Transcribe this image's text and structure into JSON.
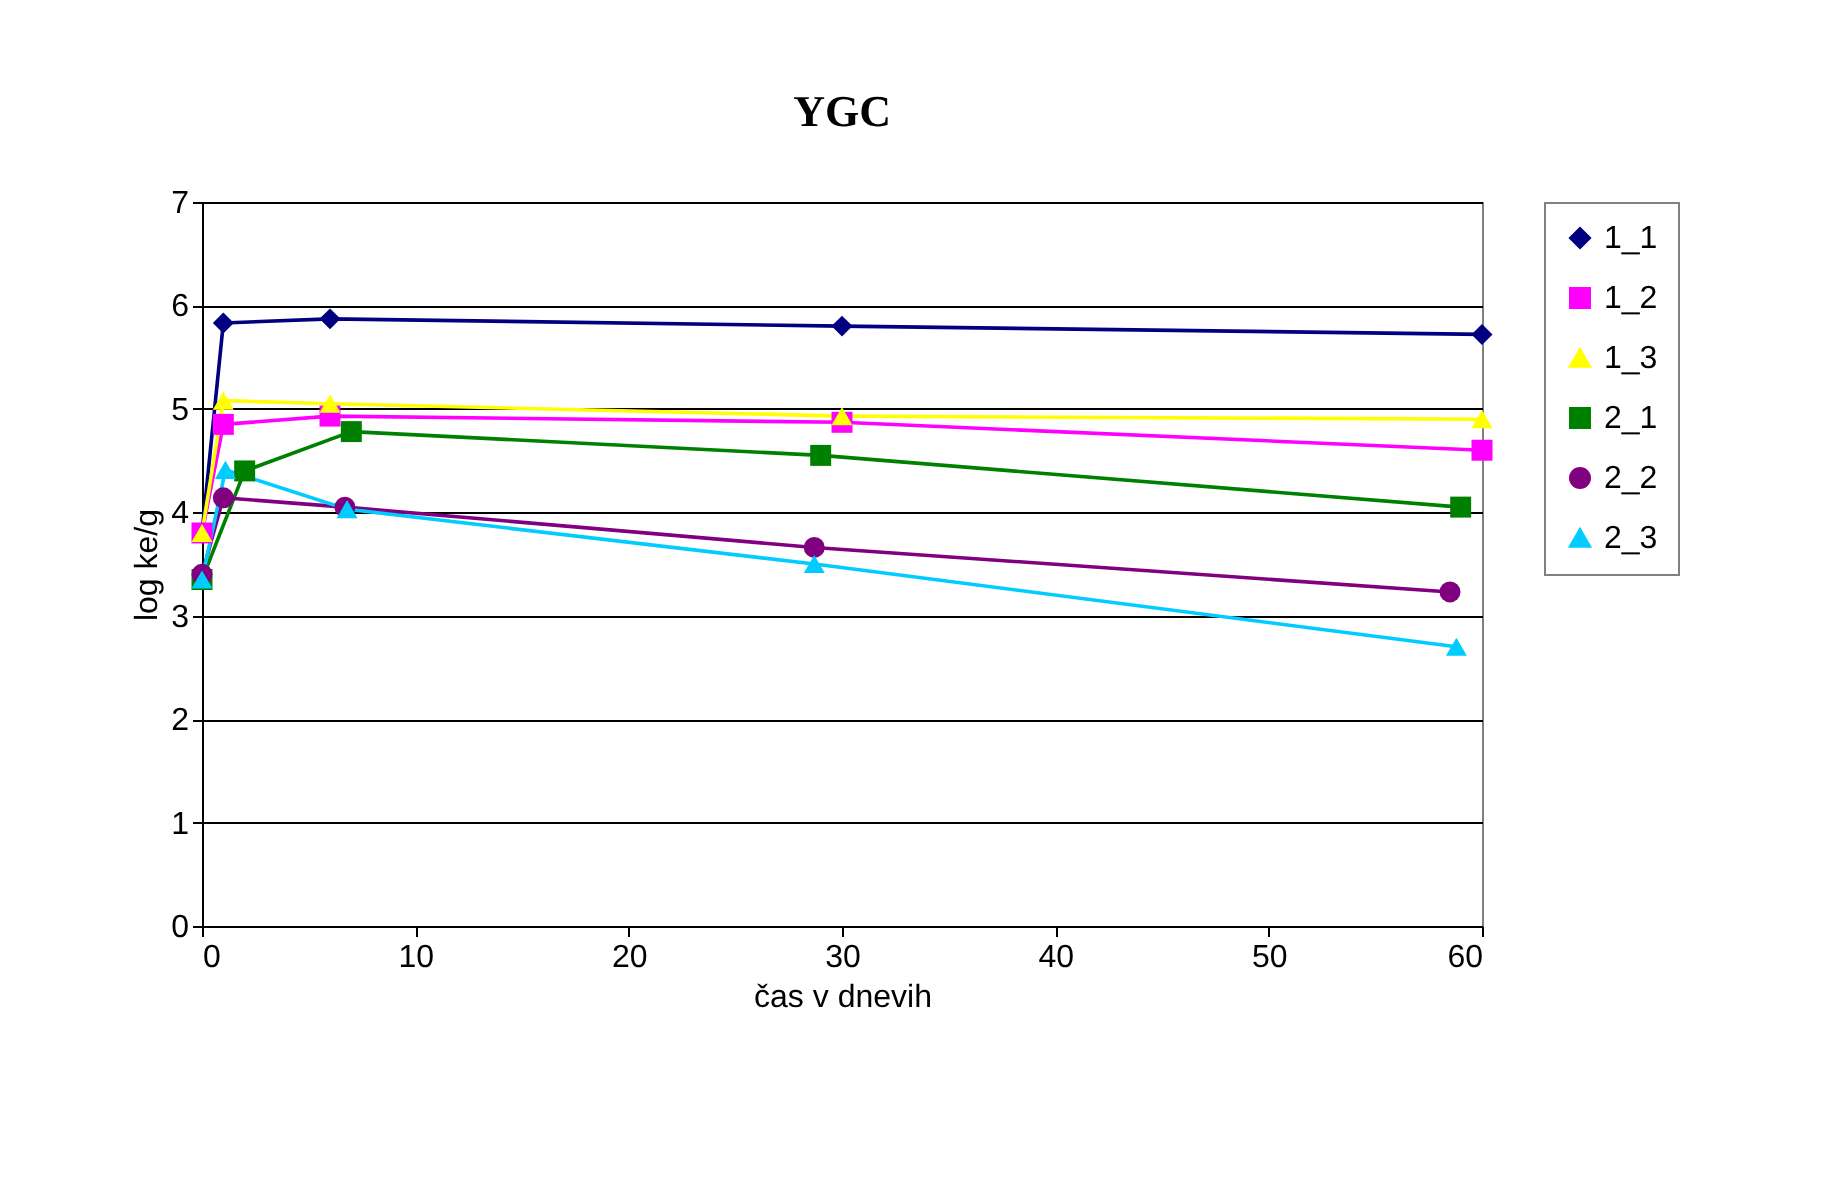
{
  "chart_data": {
    "type": "line",
    "title": "YGC",
    "xlabel": "čas v dnevih",
    "ylabel": "log ke/g",
    "xlim": [
      0,
      60
    ],
    "xticks": [
      0,
      10,
      20,
      30,
      40,
      50,
      60
    ],
    "ylim": [
      0,
      7
    ],
    "yticks": [
      0,
      1,
      2,
      3,
      4,
      5,
      6,
      7
    ],
    "grid": "y",
    "legend": "right",
    "line_style": "solid",
    "series": [
      {
        "name": "1_1",
        "color": "#000080",
        "marker": "diamond",
        "x": [
          0,
          1,
          6,
          30,
          60
        ],
        "values": [
          3.8,
          5.83,
          5.87,
          5.8,
          5.72
        ]
      },
      {
        "name": "1_2",
        "color": "#ff00ff",
        "marker": "square",
        "x": [
          0,
          1,
          6,
          30,
          60
        ],
        "values": [
          3.8,
          4.85,
          4.93,
          4.87,
          4.6
        ]
      },
      {
        "name": "1_3",
        "color": "#ffff00",
        "marker": "triangle",
        "x": [
          0,
          1,
          6,
          30,
          60
        ],
        "values": [
          3.8,
          5.08,
          5.05,
          4.93,
          4.9
        ]
      },
      {
        "name": "2_1",
        "color": "#008000",
        "marker": "square",
        "x": [
          0,
          2,
          7,
          29,
          59
        ],
        "values": [
          3.35,
          4.4,
          4.78,
          4.55,
          4.05
        ]
      },
      {
        "name": "2_2",
        "color": "#800080",
        "marker": "circle",
        "x": [
          0,
          1,
          6.7,
          28.7,
          58.5
        ],
        "values": [
          3.4,
          4.14,
          4.05,
          3.66,
          3.23
        ]
      },
      {
        "name": "2_3",
        "color": "#00ccff",
        "marker": "triangle",
        "x": [
          0,
          1.1,
          6.8,
          28.7,
          58.8
        ],
        "values": [
          3.35,
          4.41,
          4.03,
          3.5,
          2.7
        ]
      }
    ]
  }
}
